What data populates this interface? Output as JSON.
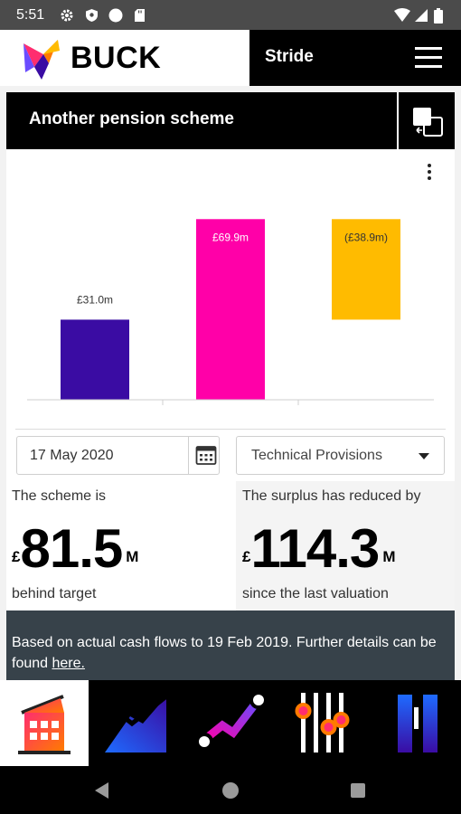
{
  "status_bar": {
    "time": "5:51",
    "left_icons": [
      "gear-icon",
      "shield-icon",
      "circle-icon",
      "sd-card-icon"
    ],
    "right_icons": [
      "wifi-icon",
      "signal-icon",
      "battery-icon"
    ]
  },
  "header": {
    "logo_text": "BUCK",
    "app_title": "Stride",
    "menu_icon": "hamburger-menu-icon"
  },
  "card": {
    "title": "Another pension scheme",
    "switch_icon": "switch-scheme-icon",
    "more_icon": "more-vertical-icon"
  },
  "chart_data": {
    "type": "bar",
    "categories": [
      "",
      "",
      ""
    ],
    "values": [
      31.0,
      69.9,
      -38.9
    ],
    "labels": [
      "£31.0m",
      "£69.9m",
      "(£38.9m)"
    ],
    "colors": [
      "#3a0ca3",
      "#ff00a8",
      "#ffbb00"
    ],
    "title": "",
    "xlabel": "",
    "ylabel": "",
    "grid": false
  },
  "controls": {
    "date_value": "17 May 2020",
    "date_icon": "calendar-icon",
    "basis_value": "Technical Provisions",
    "basis_icon": "dropdown-caret-icon"
  },
  "stats": {
    "left": {
      "caption": "The scheme is",
      "currency": "£",
      "value": "81.5",
      "unit": "M",
      "footer": "behind target"
    },
    "right": {
      "caption": "The surplus has reduced by",
      "currency": "£",
      "value": "114.3",
      "unit": "M",
      "footer": "since the last valuation"
    }
  },
  "info": {
    "text": "Based on actual cash flows to 19 Feb 2019. Further details can be found ",
    "link": "here."
  },
  "bottom_nav": {
    "items": [
      "home-icon",
      "growth-chart-icon",
      "journey-icon",
      "sliders-icon",
      "bars-icon"
    ],
    "active": 0
  },
  "system_nav": [
    "back-icon",
    "home-circle-icon",
    "recents-icon"
  ],
  "colors": {
    "brand_blue": "#3a0ca3",
    "brand_pink": "#ff00a8",
    "brand_yellow": "#ffbb00",
    "info_bg": "#37424a"
  }
}
